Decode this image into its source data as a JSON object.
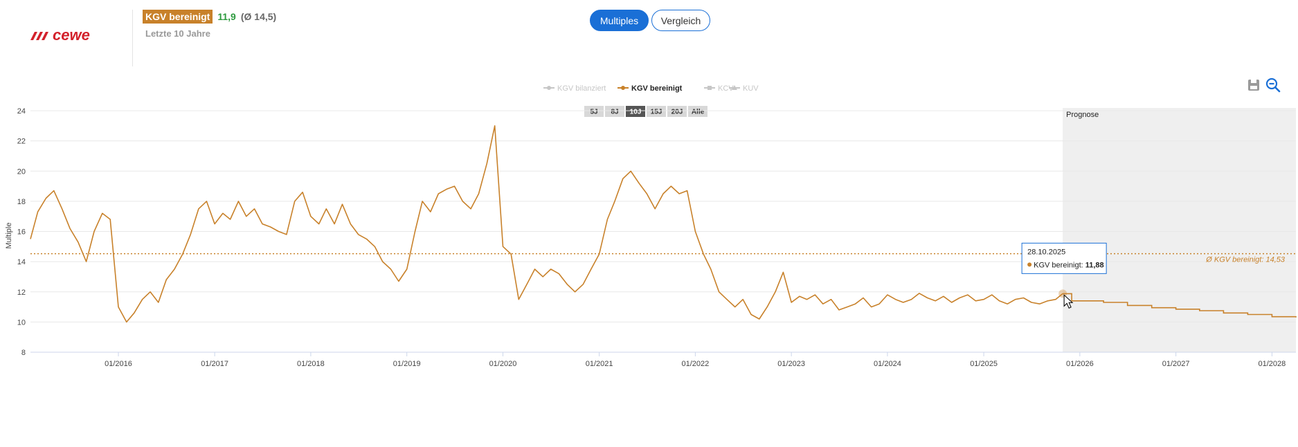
{
  "brand": {
    "logo_text": "cewe",
    "logo_color": "#d3212b"
  },
  "header": {
    "metric_label": "KGV bereinigt",
    "metric_value": "11,9",
    "metric_avg": "(Ø 14,5)",
    "period_label": "Letzte 10 Jahre"
  },
  "view_toggle": {
    "multiples_label": "Multiples",
    "compare_label": "Vergleich",
    "active": "Multiples"
  },
  "toolbar": {
    "save_icon": "save-icon",
    "zoom_out_icon": "zoom-out-icon"
  },
  "colors": {
    "series": "#c8812a",
    "accent": "#1a6fd6",
    "legend_inactive": "#c6c6c6",
    "forecast_bg": "#efefef"
  },
  "chart_data": {
    "type": "line",
    "legend": [
      {
        "name": "KGV bereinigt",
        "active": true
      },
      {
        "name": "KGV bilanziert",
        "active": false
      },
      {
        "name": "KCV",
        "active": false
      },
      {
        "name": "KUV",
        "active": false
      }
    ],
    "range_buttons": [
      "5J",
      "8J",
      "10J",
      "15J",
      "20J",
      "Alle"
    ],
    "active_range": "10J",
    "ylabel": "Multiple",
    "ylim": [
      8,
      24
    ],
    "yticks": [
      8,
      10,
      12,
      14,
      16,
      18,
      20,
      22,
      24
    ],
    "xlim": [
      "2015-02-01",
      "2028-04-01"
    ],
    "xticks": [
      "01/2016",
      "01/2017",
      "01/2018",
      "01/2019",
      "01/2020",
      "01/2021",
      "01/2022",
      "01/2023",
      "01/2024",
      "01/2025",
      "01/2026",
      "01/2027",
      "01/2028"
    ],
    "forecast_label": "Prognose",
    "forecast_start": "2025-10-28",
    "average": {
      "label": "Ø KGV bereinigt: 14,53",
      "value": 14.53
    },
    "series": [
      {
        "name": "KGV bereinigt",
        "points": [
          [
            "2015-02-01",
            15.5
          ],
          [
            "2015-03-01",
            17.3
          ],
          [
            "2015-04-01",
            18.2
          ],
          [
            "2015-05-01",
            18.7
          ],
          [
            "2015-06-01",
            17.5
          ],
          [
            "2015-07-01",
            16.2
          ],
          [
            "2015-08-01",
            15.3
          ],
          [
            "2015-09-01",
            14.0
          ],
          [
            "2015-10-01",
            16.0
          ],
          [
            "2015-11-01",
            17.2
          ],
          [
            "2015-12-01",
            16.8
          ],
          [
            "2016-01-01",
            11.0
          ],
          [
            "2016-02-01",
            10.0
          ],
          [
            "2016-03-01",
            10.6
          ],
          [
            "2016-04-01",
            11.5
          ],
          [
            "2016-05-01",
            12.0
          ],
          [
            "2016-06-01",
            11.3
          ],
          [
            "2016-07-01",
            12.8
          ],
          [
            "2016-08-01",
            13.5
          ],
          [
            "2016-09-01",
            14.5
          ],
          [
            "2016-10-01",
            15.8
          ],
          [
            "2016-11-01",
            17.5
          ],
          [
            "2016-12-01",
            18.0
          ],
          [
            "2017-01-01",
            16.5
          ],
          [
            "2017-02-01",
            17.2
          ],
          [
            "2017-03-01",
            16.8
          ],
          [
            "2017-04-01",
            18.0
          ],
          [
            "2017-05-01",
            17.0
          ],
          [
            "2017-06-01",
            17.5
          ],
          [
            "2017-07-01",
            16.5
          ],
          [
            "2017-08-01",
            16.3
          ],
          [
            "2017-09-01",
            16.0
          ],
          [
            "2017-10-01",
            15.8
          ],
          [
            "2017-11-01",
            18.0
          ],
          [
            "2017-12-01",
            18.6
          ],
          [
            "2018-01-01",
            17.0
          ],
          [
            "2018-02-01",
            16.5
          ],
          [
            "2018-03-01",
            17.5
          ],
          [
            "2018-04-01",
            16.5
          ],
          [
            "2018-05-01",
            17.8
          ],
          [
            "2018-06-01",
            16.5
          ],
          [
            "2018-07-01",
            15.8
          ],
          [
            "2018-08-01",
            15.5
          ],
          [
            "2018-09-01",
            15.0
          ],
          [
            "2018-10-01",
            14.0
          ],
          [
            "2018-11-01",
            13.5
          ],
          [
            "2018-12-01",
            12.7
          ],
          [
            "2019-01-01",
            13.5
          ],
          [
            "2019-02-01",
            16.0
          ],
          [
            "2019-03-01",
            18.0
          ],
          [
            "2019-04-01",
            17.3
          ],
          [
            "2019-05-01",
            18.5
          ],
          [
            "2019-06-01",
            18.8
          ],
          [
            "2019-07-01",
            19.0
          ],
          [
            "2019-08-01",
            18.0
          ],
          [
            "2019-09-01",
            17.5
          ],
          [
            "2019-10-01",
            18.5
          ],
          [
            "2019-11-01",
            20.5
          ],
          [
            "2019-12-01",
            23.0
          ],
          [
            "2020-01-01",
            15.0
          ],
          [
            "2020-02-01",
            14.5
          ],
          [
            "2020-03-01",
            11.5
          ],
          [
            "2020-04-01",
            12.5
          ],
          [
            "2020-05-01",
            13.5
          ],
          [
            "2020-06-01",
            13.0
          ],
          [
            "2020-07-01",
            13.5
          ],
          [
            "2020-08-01",
            13.2
          ],
          [
            "2020-09-01",
            12.5
          ],
          [
            "2020-10-01",
            12.0
          ],
          [
            "2020-11-01",
            12.5
          ],
          [
            "2020-12-01",
            13.5
          ],
          [
            "2021-01-01",
            14.5
          ],
          [
            "2021-02-01",
            16.8
          ],
          [
            "2021-03-01",
            18.0
          ],
          [
            "2021-04-01",
            19.5
          ],
          [
            "2021-05-01",
            20.0
          ],
          [
            "2021-06-01",
            19.2
          ],
          [
            "2021-07-01",
            18.5
          ],
          [
            "2021-08-01",
            17.5
          ],
          [
            "2021-09-01",
            18.5
          ],
          [
            "2021-10-01",
            19.0
          ],
          [
            "2021-11-01",
            18.5
          ],
          [
            "2021-12-01",
            18.7
          ],
          [
            "2022-01-01",
            16.0
          ],
          [
            "2022-02-01",
            14.5
          ],
          [
            "2022-03-01",
            13.5
          ],
          [
            "2022-04-01",
            12.0
          ],
          [
            "2022-05-01",
            11.5
          ],
          [
            "2022-06-01",
            11.0
          ],
          [
            "2022-07-01",
            11.5
          ],
          [
            "2022-08-01",
            10.5
          ],
          [
            "2022-09-01",
            10.2
          ],
          [
            "2022-10-01",
            11.0
          ],
          [
            "2022-11-01",
            12.0
          ],
          [
            "2022-12-01",
            13.3
          ],
          [
            "2023-01-01",
            11.3
          ],
          [
            "2023-02-01",
            11.7
          ],
          [
            "2023-03-01",
            11.5
          ],
          [
            "2023-04-01",
            11.8
          ],
          [
            "2023-05-01",
            11.2
          ],
          [
            "2023-06-01",
            11.5
          ],
          [
            "2023-07-01",
            10.8
          ],
          [
            "2023-08-01",
            11.0
          ],
          [
            "2023-09-01",
            11.2
          ],
          [
            "2023-10-01",
            11.6
          ],
          [
            "2023-11-01",
            11.0
          ],
          [
            "2023-12-01",
            11.2
          ],
          [
            "2024-01-01",
            11.8
          ],
          [
            "2024-02-01",
            11.5
          ],
          [
            "2024-03-01",
            11.3
          ],
          [
            "2024-04-01",
            11.5
          ],
          [
            "2024-05-01",
            11.9
          ],
          [
            "2024-06-01",
            11.6
          ],
          [
            "2024-07-01",
            11.4
          ],
          [
            "2024-08-01",
            11.7
          ],
          [
            "2024-09-01",
            11.3
          ],
          [
            "2024-10-01",
            11.6
          ],
          [
            "2024-11-01",
            11.8
          ],
          [
            "2024-12-01",
            11.4
          ],
          [
            "2025-01-01",
            11.5
          ],
          [
            "2025-02-01",
            11.8
          ],
          [
            "2025-03-01",
            11.4
          ],
          [
            "2025-04-01",
            11.2
          ],
          [
            "2025-05-01",
            11.5
          ],
          [
            "2025-06-01",
            11.6
          ],
          [
            "2025-07-01",
            11.3
          ],
          [
            "2025-08-01",
            11.2
          ],
          [
            "2025-09-01",
            11.4
          ],
          [
            "2025-10-01",
            11.5
          ],
          [
            "2025-10-28",
            11.88
          ]
        ]
      },
      {
        "name": "Prognose",
        "step": true,
        "points": [
          [
            "2025-10-28",
            11.88
          ],
          [
            "2025-12-01",
            11.4
          ],
          [
            "2026-04-01",
            11.3
          ],
          [
            "2026-07-01",
            11.1
          ],
          [
            "2026-10-01",
            10.95
          ],
          [
            "2027-01-01",
            10.85
          ],
          [
            "2027-04-01",
            10.75
          ],
          [
            "2027-07-01",
            10.6
          ],
          [
            "2027-10-01",
            10.5
          ],
          [
            "2028-01-01",
            10.35
          ],
          [
            "2028-04-01",
            10.3
          ]
        ]
      }
    ],
    "tooltip": {
      "date": "28.10.2025",
      "series": "KGV bereinigt",
      "value": "11,88"
    }
  }
}
